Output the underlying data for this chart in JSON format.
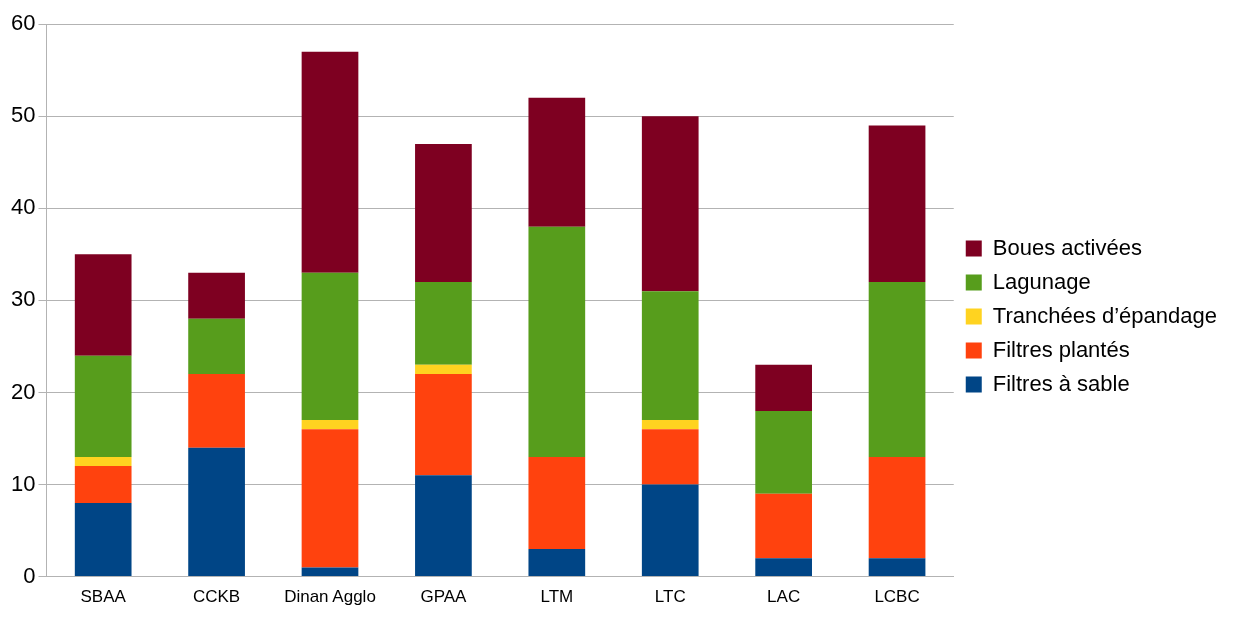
{
  "chart_data": {
    "type": "bar",
    "stacked": true,
    "categories": [
      "SBAA",
      "CCKB",
      "Dinan Agglo",
      "GPAA",
      "LTM",
      "LTC",
      "LAC",
      "LCBC"
    ],
    "series": [
      {
        "name": "Filtres à sable",
        "color": "#004586",
        "values": [
          8,
          14,
          1,
          11,
          3,
          10,
          2,
          2
        ]
      },
      {
        "name": "Filtres plantés",
        "color": "#ff420e",
        "values": [
          4,
          8,
          15,
          11,
          10,
          6,
          7,
          11
        ]
      },
      {
        "name": "Tranchées d’épandage",
        "color": "#ffd320",
        "values": [
          1,
          0,
          1,
          1,
          0,
          1,
          0,
          0
        ]
      },
      {
        "name": "Lagunage",
        "color": "#579d1c",
        "values": [
          11,
          6,
          16,
          9,
          25,
          14,
          9,
          19
        ]
      },
      {
        "name": "Boues activées",
        "color": "#7e0021",
        "values": [
          11,
          5,
          24,
          15,
          14,
          19,
          5,
          17
        ]
      }
    ],
    "ylim": [
      0,
      60
    ],
    "yticks": [
      0,
      10,
      20,
      30,
      40,
      50,
      60
    ],
    "grid": "y",
    "legend": "right"
  }
}
